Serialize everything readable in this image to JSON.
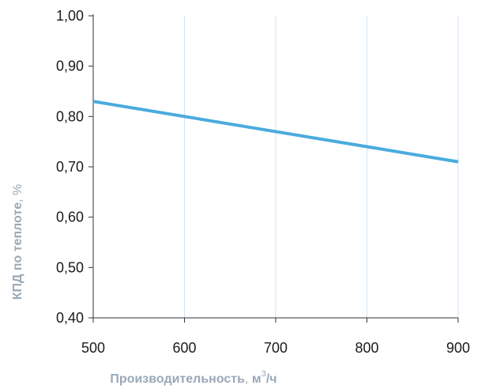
{
  "chart_data": {
    "type": "line",
    "xlabel": {
      "main": "Производительность",
      "sep": ", ",
      "unit_base": "м",
      "unit_sup": "3",
      "unit_tail": "/ч"
    },
    "ylabel": {
      "main": "КПД по теплоте",
      "sep": ", ",
      "unit": "%"
    },
    "xlim": [
      500,
      900
    ],
    "ylim": [
      0.4,
      1.0
    ],
    "x_ticks": [
      500,
      600,
      700,
      800,
      900
    ],
    "x_tick_labels": [
      "500",
      "600",
      "700",
      "800",
      "900"
    ],
    "y_ticks": [
      0.4,
      0.5,
      0.6,
      0.7,
      0.8,
      0.9,
      1.0
    ],
    "y_tick_labels": [
      "0,40",
      "0,50",
      "0,60",
      "0,70",
      "0,80",
      "0,90",
      "1,00"
    ],
    "grid": {
      "vertical": true,
      "horizontal": false
    },
    "series": [
      {
        "x": [
          500,
          600,
          700,
          800,
          900
        ],
        "y": [
          0.83,
          0.8,
          0.77,
          0.74,
          0.71
        ],
        "color": "#4aabdf"
      }
    ],
    "colors": {
      "axis": "#333333",
      "grid": "#cfe3f3",
      "title": "#9aa8b8"
    }
  }
}
